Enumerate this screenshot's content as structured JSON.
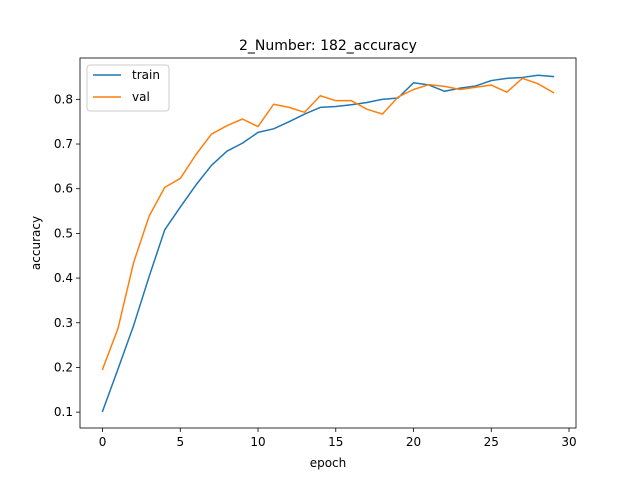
{
  "chart_data": {
    "type": "line",
    "title": "2_Number: 182_accuracy",
    "xlabel": "epoch",
    "ylabel": "accuracy",
    "xlim": [
      -1.45,
      30.45
    ],
    "ylim": [
      0.0645,
      0.8925
    ],
    "xticks": [
      0,
      5,
      10,
      15,
      20,
      25,
      30
    ],
    "yticks": [
      0.1,
      0.2,
      0.3,
      0.4,
      0.5,
      0.6,
      0.7,
      0.8
    ],
    "xtick_labels": [
      "0",
      "5",
      "10",
      "15",
      "20",
      "25",
      "30"
    ],
    "ytick_labels": [
      "0.1",
      "0.2",
      "0.3",
      "0.4",
      "0.5",
      "0.6",
      "0.7",
      "0.8"
    ],
    "grid": false,
    "legend_position": "upper-left",
    "x": [
      0,
      1,
      2,
      3,
      4,
      5,
      6,
      7,
      8,
      9,
      10,
      11,
      12,
      13,
      14,
      15,
      16,
      17,
      18,
      19,
      20,
      21,
      22,
      23,
      24,
      25,
      26,
      27,
      28,
      29
    ],
    "series": [
      {
        "name": "train",
        "color": "#1f77b4",
        "values": [
          0.102,
          0.197,
          0.294,
          0.404,
          0.508,
          0.559,
          0.608,
          0.652,
          0.684,
          0.702,
          0.726,
          0.734,
          0.75,
          0.767,
          0.782,
          0.784,
          0.788,
          0.793,
          0.8,
          0.803,
          0.837,
          0.832,
          0.818,
          0.825,
          0.83,
          0.842,
          0.847,
          0.849,
          0.854,
          0.851
        ]
      },
      {
        "name": "val",
        "color": "#ff7f0e",
        "values": [
          0.196,
          0.288,
          0.435,
          0.539,
          0.603,
          0.623,
          0.676,
          0.722,
          0.741,
          0.756,
          0.739,
          0.789,
          0.782,
          0.771,
          0.808,
          0.797,
          0.797,
          0.778,
          0.767,
          0.805,
          0.822,
          0.833,
          0.829,
          0.822,
          0.827,
          0.832,
          0.816,
          0.847,
          0.835,
          0.815
        ]
      }
    ]
  }
}
